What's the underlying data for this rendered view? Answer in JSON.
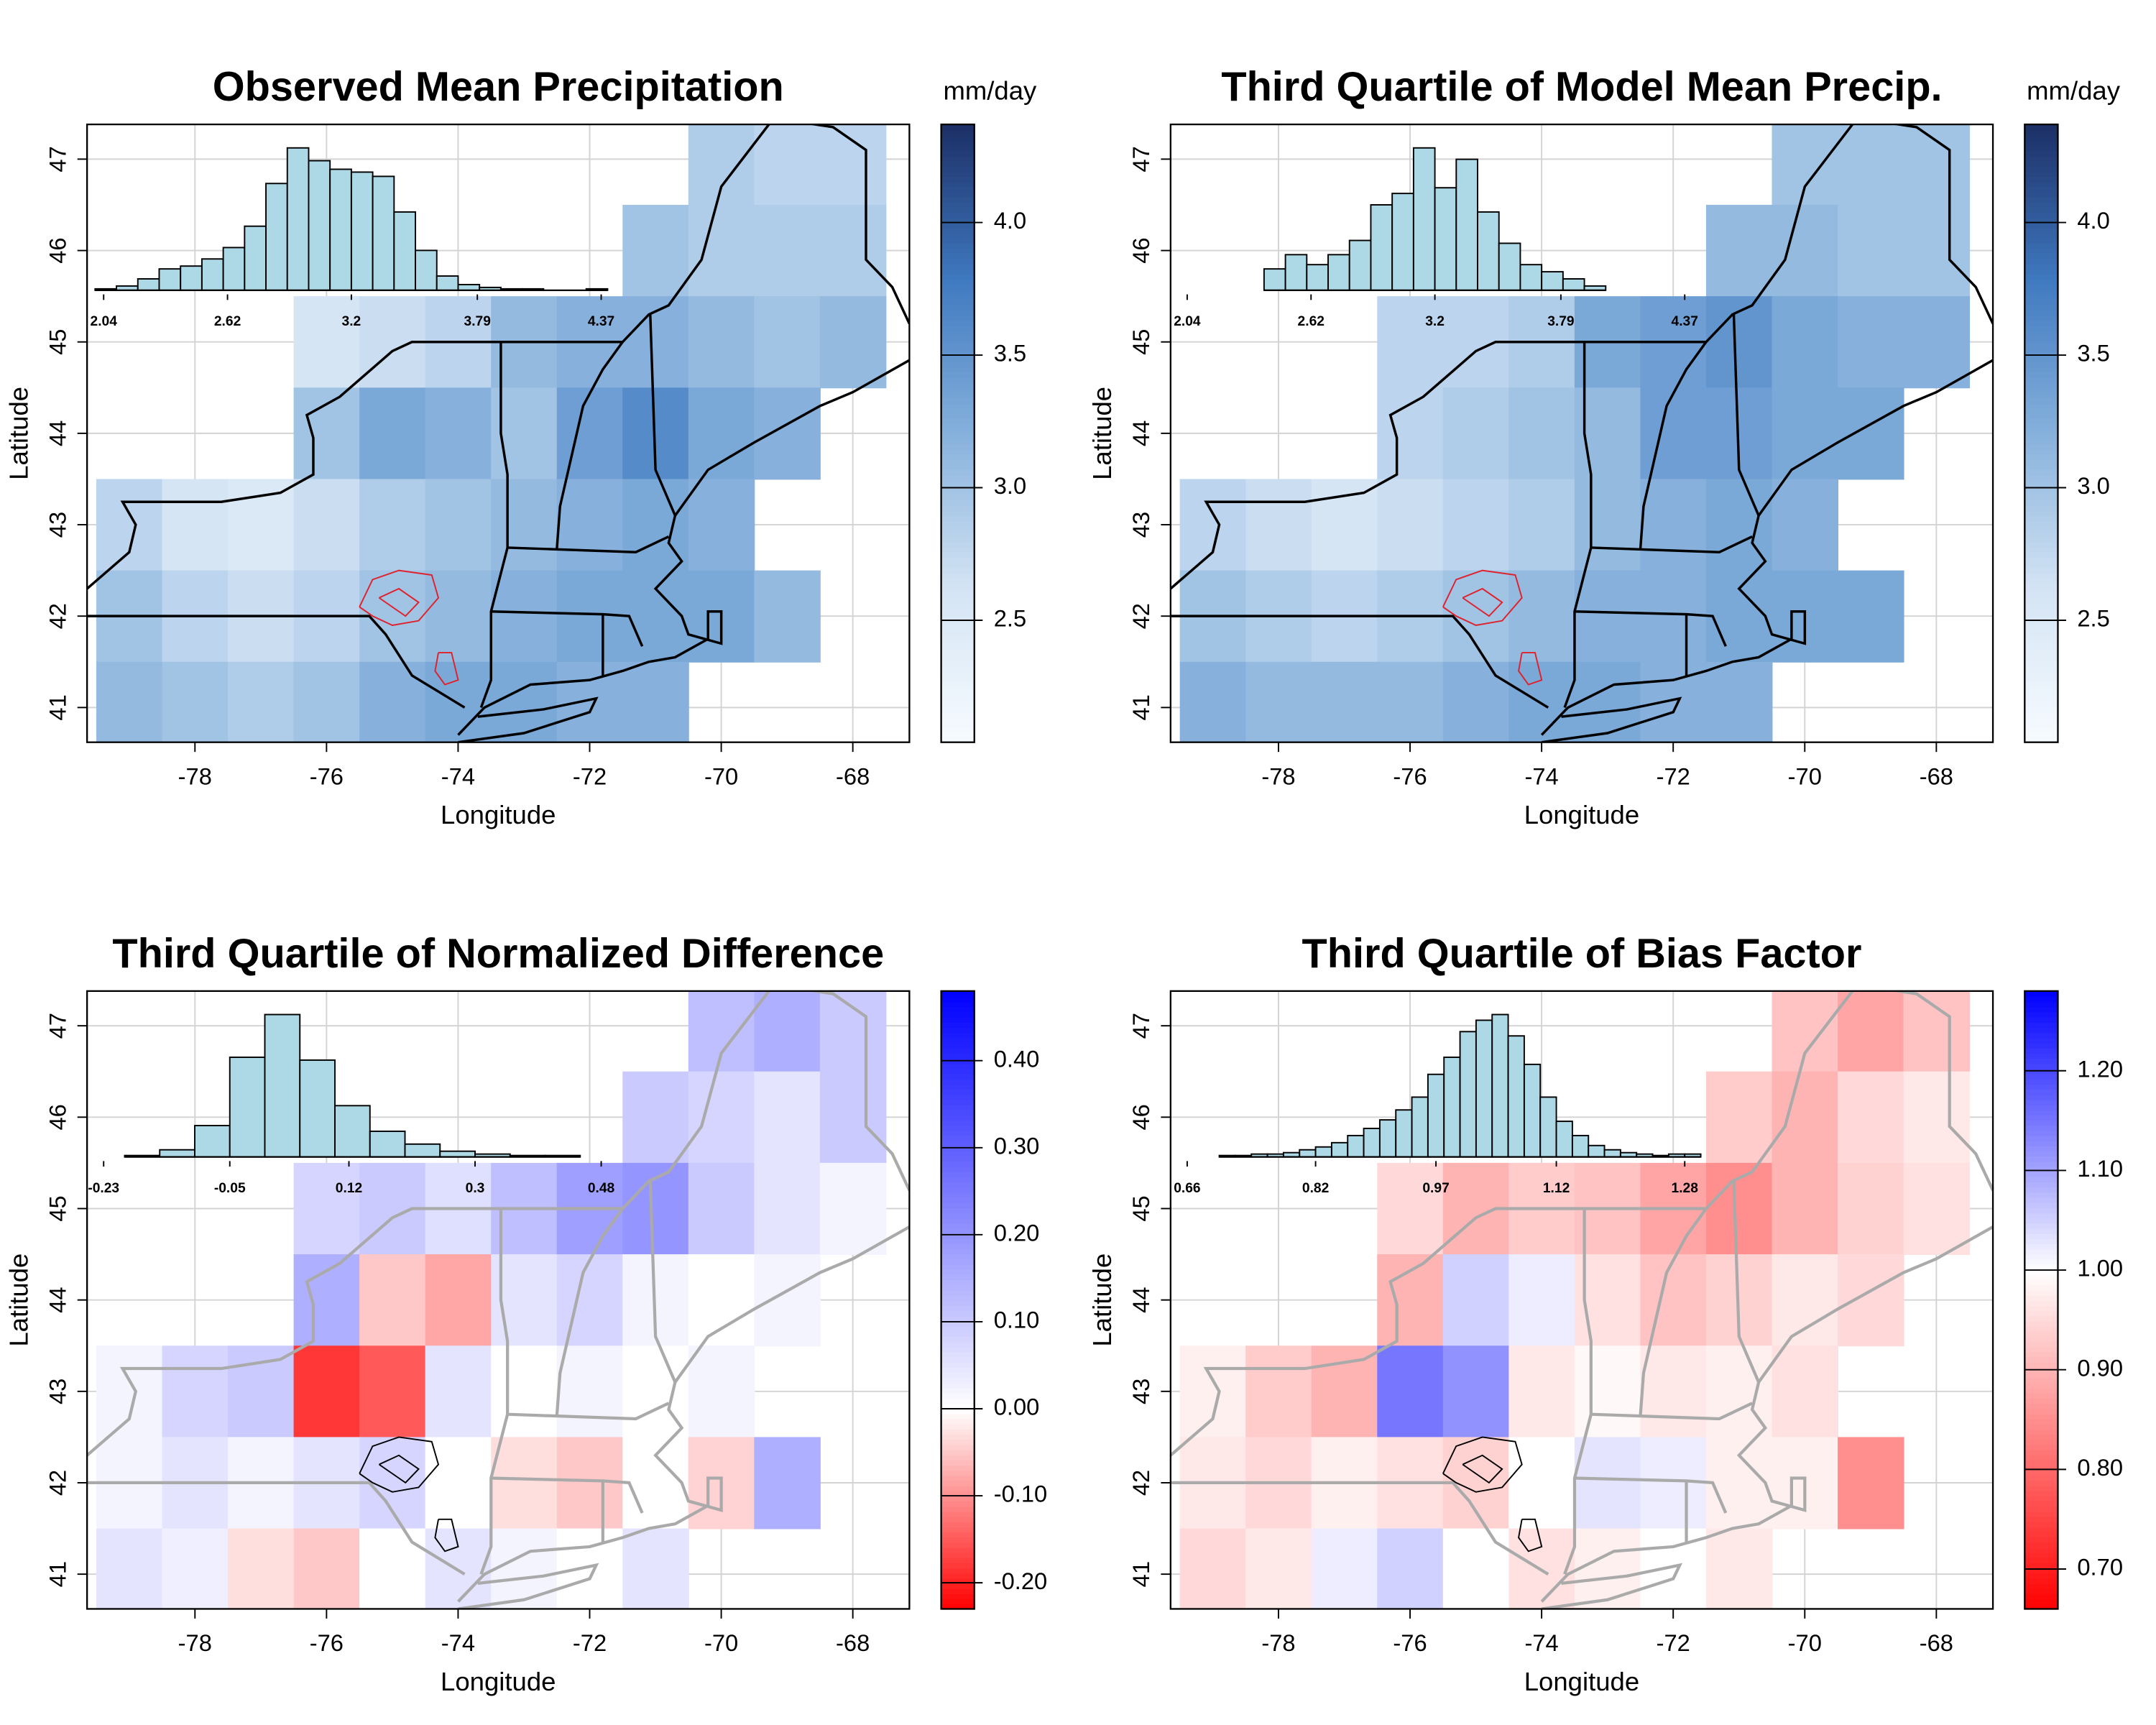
{
  "chart_data": [
    {
      "type": "heatmap",
      "title": "Observed Mean Precipitation",
      "colorbar_label": "mm/day",
      "xlabel": "Longitude",
      "ylabel": "Latitude",
      "xlim": [
        -79.64,
        -67.14
      ],
      "ylim": [
        40.62,
        47.38
      ],
      "xticks": [
        -78,
        -76,
        -74,
        -72,
        -70,
        -68
      ],
      "yticks": [
        41,
        42,
        43,
        44,
        45,
        46,
        47
      ],
      "grid": true,
      "x": [
        -79,
        -78,
        -77,
        -76,
        -75,
        -74,
        -73,
        -72,
        -71,
        -70,
        -69,
        -68
      ],
      "y": [
        47,
        46,
        45,
        44,
        43,
        42,
        41
      ],
      "values": [
        [
          null,
          null,
          null,
          null,
          null,
          null,
          null,
          null,
          null,
          2.9,
          2.8,
          2.8
        ],
        [
          null,
          null,
          null,
          null,
          null,
          null,
          null,
          null,
          3.0,
          2.9,
          2.9,
          2.9
        ],
        [
          null,
          null,
          null,
          2.6,
          2.7,
          2.8,
          3.1,
          3.2,
          3.2,
          3.1,
          3.0,
          3.1
        ],
        [
          null,
          null,
          null,
          3.0,
          3.3,
          3.2,
          3.0,
          3.4,
          3.6,
          3.3,
          3.2,
          null
        ],
        [
          2.8,
          2.6,
          2.5,
          2.7,
          2.9,
          3.0,
          3.1,
          3.2,
          3.3,
          3.2,
          null,
          null
        ],
        [
          3.0,
          2.8,
          2.7,
          2.8,
          3.0,
          3.1,
          3.2,
          3.3,
          3.3,
          3.3,
          3.1,
          null
        ],
        [
          3.1,
          3.0,
          2.9,
          3.0,
          3.2,
          3.3,
          3.3,
          3.2,
          3.2,
          null,
          null,
          null
        ]
      ],
      "clim": [
        2.04,
        4.37
      ],
      "colors": [
        "#f7fbff",
        "#d4e4f4",
        "#86b1dc",
        "#3f79c0",
        "#1c2f66"
      ],
      "cticks": [
        2.5,
        {
          "value": 3,
          "label": "3.0"
        },
        3.5,
        {
          "value": 4,
          "label": "4.0"
        }
      ],
      "outline_color": "#000000",
      "basin_color": "#e0202a",
      "histogram": {
        "color": "#add8e6",
        "bins": [
          2.0,
          2.1,
          2.2,
          2.3,
          2.4,
          2.5,
          2.6,
          2.7,
          2.8,
          2.9,
          3.0,
          3.1,
          3.2,
          3.3,
          3.4,
          3.5,
          3.6,
          3.7,
          3.8,
          3.9,
          4.0,
          4.1,
          4.2,
          4.3,
          4.4
        ],
        "counts": [
          1,
          3,
          8,
          15,
          17,
          22,
          30,
          45,
          75,
          100,
          91,
          85,
          83,
          80,
          55,
          28,
          10,
          4,
          2,
          1,
          1,
          0,
          0,
          1
        ],
        "xticks": [
          2.04,
          2.62,
          3.2,
          3.79,
          4.37
        ]
      }
    },
    {
      "type": "heatmap",
      "title": "Third Quartile of Model Mean Precip.",
      "colorbar_label": "mm/day",
      "xlabel": "Longitude",
      "ylabel": "Latitude",
      "xlim": [
        -79.64,
        -67.14
      ],
      "ylim": [
        40.62,
        47.38
      ],
      "xticks": [
        -78,
        -76,
        -74,
        -72,
        -70,
        -68
      ],
      "yticks": [
        41,
        42,
        43,
        44,
        45,
        46,
        47
      ],
      "grid": true,
      "x": [
        -79,
        -78,
        -77,
        -76,
        -75,
        -74,
        -73,
        -72,
        -71,
        -70,
        -69,
        -68
      ],
      "y": [
        47,
        46,
        45,
        44,
        43,
        42,
        41
      ],
      "values": [
        [
          null,
          null,
          null,
          null,
          null,
          null,
          null,
          null,
          null,
          3.0,
          3.0,
          3.0
        ],
        [
          null,
          null,
          null,
          null,
          null,
          null,
          null,
          null,
          3.1,
          3.1,
          3.0,
          3.0
        ],
        [
          null,
          null,
          null,
          2.8,
          2.8,
          2.9,
          3.3,
          3.4,
          3.5,
          3.3,
          3.2,
          3.2
        ],
        [
          null,
          null,
          null,
          2.8,
          2.9,
          3.0,
          3.1,
          3.4,
          3.4,
          3.3,
          3.3,
          null
        ],
        [
          2.8,
          2.7,
          2.6,
          2.7,
          2.8,
          2.9,
          3.1,
          3.2,
          3.3,
          3.2,
          null,
          null
        ],
        [
          3.0,
          2.9,
          2.8,
          2.9,
          3.0,
          3.1,
          3.2,
          3.2,
          3.3,
          3.3,
          3.3,
          null
        ],
        [
          3.2,
          3.1,
          3.1,
          3.1,
          3.2,
          3.3,
          3.3,
          3.2,
          3.2,
          null,
          null,
          null
        ]
      ],
      "clim": [
        2.04,
        4.37
      ],
      "colors": [
        "#f7fbff",
        "#d4e4f4",
        "#86b1dc",
        "#3f79c0",
        "#1c2f66"
      ],
      "cticks": [
        2.5,
        {
          "value": 3,
          "label": "3.0"
        },
        3.5,
        {
          "value": 4,
          "label": "4.0"
        }
      ],
      "outline_color": "#000000",
      "basin_color": "#e0202a",
      "histogram": {
        "color": "#add8e6",
        "bins": [
          2.4,
          2.5,
          2.6,
          2.7,
          2.8,
          2.9,
          3.0,
          3.1,
          3.2,
          3.3,
          3.4,
          3.5,
          3.6,
          3.7,
          3.8,
          3.9,
          4.0
        ],
        "counts": [
          15,
          25,
          18,
          25,
          35,
          60,
          68,
          100,
          72,
          92,
          55,
          33,
          18,
          13,
          8,
          3
        ],
        "xticks": [
          2.04,
          2.62,
          3.2,
          3.79,
          4.37
        ]
      }
    },
    {
      "type": "heatmap",
      "title": "Third Quartile of Normalized Difference",
      "xlabel": "Longitude",
      "ylabel": "Latitude",
      "xlim": [
        -79.64,
        -67.14
      ],
      "ylim": [
        40.62,
        47.38
      ],
      "xticks": [
        -78,
        -76,
        -74,
        -72,
        -70,
        -68
      ],
      "yticks": [
        41,
        42,
        43,
        44,
        45,
        46,
        47
      ],
      "grid": true,
      "x": [
        -79,
        -78,
        -77,
        -76,
        -75,
        -74,
        -73,
        -72,
        -71,
        -70,
        -69,
        -68
      ],
      "y": [
        47,
        46,
        45,
        44,
        43,
        42,
        41
      ],
      "values": [
        [
          null,
          null,
          null,
          null,
          null,
          null,
          null,
          null,
          null,
          0.12,
          0.15,
          0.1
        ],
        [
          null,
          null,
          null,
          null,
          null,
          null,
          null,
          null,
          0.1,
          0.08,
          0.05,
          0.1
        ],
        [
          null,
          null,
          null,
          0.08,
          0.1,
          0.06,
          0.12,
          0.18,
          0.2,
          0.1,
          0.05,
          0.02
        ],
        [
          null,
          null,
          null,
          0.15,
          -0.05,
          -0.08,
          0.05,
          0.08,
          0.02,
          0.0,
          0.02,
          null
        ],
        [
          0.02,
          0.08,
          0.1,
          -0.18,
          -0.15,
          0.05,
          0.0,
          0.02,
          0.0,
          0.02,
          null,
          null
        ],
        [
          0.02,
          0.05,
          0.02,
          0.05,
          0.08,
          0.0,
          -0.03,
          -0.05,
          0.0,
          -0.04,
          0.15,
          null
        ],
        [
          0.05,
          0.03,
          -0.03,
          -0.05,
          0.0,
          0.05,
          0.02,
          0.0,
          0.05,
          null,
          null,
          null
        ]
      ],
      "clim": [
        -0.23,
        0.48
      ],
      "cmid": 0,
      "colors": [
        "#ff0000",
        "#ffffff",
        "#0000ff"
      ],
      "cticks": [
        {
          "value": -0.2,
          "label": "-0.20"
        },
        {
          "value": -0.1,
          "label": "-0.10"
        },
        {
          "value": 0,
          "label": "0.00"
        },
        {
          "value": 0.1,
          "label": "0.10"
        },
        {
          "value": 0.2,
          "label": "0.20"
        },
        {
          "value": 0.3,
          "label": "0.30"
        },
        {
          "value": 0.4,
          "label": "0.40"
        }
      ],
      "outline_color": "#aaaaaa",
      "basin_color": "#000000",
      "histogram": {
        "color": "#add8e6",
        "bins": [
          -0.2,
          -0.15,
          -0.1,
          -0.05,
          0.0,
          0.05,
          0.1,
          0.15,
          0.2,
          0.25,
          0.3,
          0.35,
          0.4,
          0.45
        ],
        "counts": [
          1,
          5,
          22,
          70,
          100,
          68,
          36,
          18,
          9,
          4,
          2,
          1,
          1
        ],
        "xticks": [
          -0.23,
          -0.05,
          0.12,
          0.3,
          0.48
        ]
      }
    },
    {
      "type": "heatmap",
      "title": "Third Quartile of Bias Factor",
      "xlabel": "Longitude",
      "ylabel": "Latitude",
      "xlim": [
        -79.64,
        -67.14
      ],
      "ylim": [
        40.62,
        47.38
      ],
      "xticks": [
        -78,
        -76,
        -74,
        -72,
        -70,
        -68
      ],
      "yticks": [
        41,
        42,
        43,
        44,
        45,
        46,
        47
      ],
      "grid": true,
      "x": [
        -79,
        -78,
        -77,
        -76,
        -75,
        -74,
        -73,
        -72,
        -71,
        -70,
        -69,
        -68
      ],
      "y": [
        47,
        46,
        45,
        44,
        43,
        42,
        41
      ],
      "values": [
        [
          null,
          null,
          null,
          null,
          null,
          null,
          null,
          null,
          null,
          0.92,
          0.88,
          0.92
        ],
        [
          null,
          null,
          null,
          null,
          null,
          null,
          null,
          null,
          0.93,
          0.9,
          0.95,
          0.97
        ],
        [
          null,
          null,
          null,
          0.95,
          0.9,
          0.93,
          0.92,
          0.88,
          0.85,
          0.9,
          0.94,
          0.96
        ],
        [
          null,
          null,
          null,
          0.9,
          1.05,
          1.02,
          0.96,
          0.92,
          0.94,
          0.97,
          0.95,
          null
        ],
        [
          0.98,
          0.93,
          0.9,
          1.15,
          1.12,
          0.97,
          0.99,
          0.97,
          0.98,
          0.96,
          null,
          null
        ],
        [
          0.97,
          0.95,
          0.98,
          0.96,
          0.94,
          1.0,
          1.03,
          1.02,
          0.98,
          0.98,
          0.85,
          null
        ],
        [
          0.95,
          0.97,
          1.02,
          1.05,
          1.0,
          0.96,
          0.98,
          1.0,
          0.97,
          null,
          null,
          null
        ]
      ],
      "clim": [
        0.66,
        1.28
      ],
      "cmid": 1,
      "colors": [
        "#ff0000",
        "#ffffff",
        "#0000ff"
      ],
      "cticks": [
        {
          "value": 0.7,
          "label": "0.70"
        },
        {
          "value": 0.8,
          "label": "0.80"
        },
        {
          "value": 0.9,
          "label": "0.90"
        },
        {
          "value": 1,
          "label": "1.00"
        },
        {
          "value": 1.1,
          "label": "1.10"
        },
        {
          "value": 1.2,
          "label": "1.20"
        }
      ],
      "outline_color": "#aaaaaa",
      "basin_color": "#000000",
      "histogram": {
        "color": "#add8e6",
        "bins": [
          0.7,
          0.72,
          0.74,
          0.76,
          0.78,
          0.8,
          0.82,
          0.84,
          0.86,
          0.88,
          0.9,
          0.92,
          0.94,
          0.96,
          0.98,
          1.0,
          1.02,
          1.04,
          1.06,
          1.08,
          1.1,
          1.12,
          1.14,
          1.16,
          1.18,
          1.2,
          1.22,
          1.24,
          1.26,
          1.28,
          1.3
        ],
        "counts": [
          1,
          1,
          2,
          2,
          3,
          5,
          7,
          10,
          15,
          20,
          26,
          33,
          42,
          58,
          70,
          88,
          96,
          100,
          85,
          65,
          42,
          25,
          15,
          8,
          5,
          3,
          2,
          1,
          2,
          2
        ],
        "xticks": [
          0.66,
          0.82,
          0.97,
          1.12,
          1.28
        ]
      }
    }
  ]
}
